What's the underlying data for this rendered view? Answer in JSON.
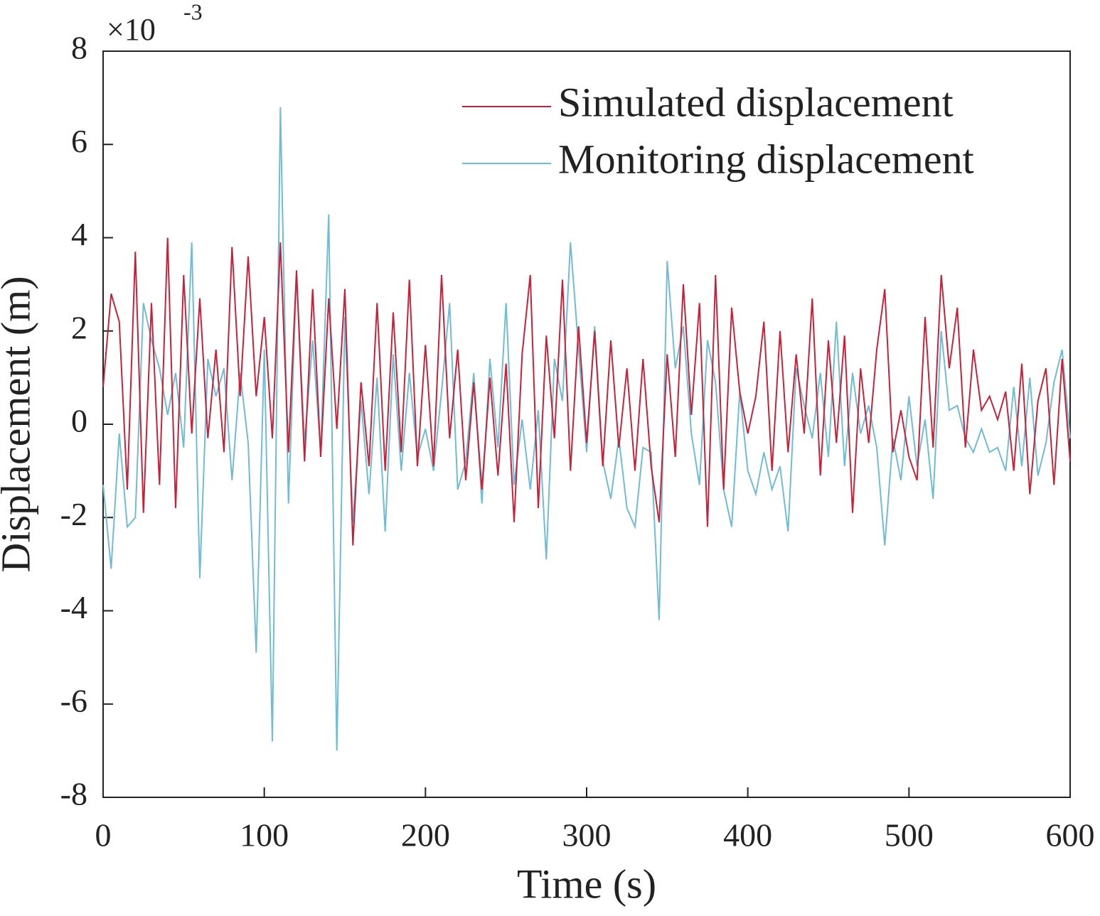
{
  "chart_data": {
    "type": "line",
    "xlabel": "Time (s)",
    "ylabel": "Displacement (m)",
    "y_multiplier": {
      "base": "×10",
      "exponent": "-3"
    },
    "x": [
      0,
      5,
      10,
      15,
      20,
      25,
      30,
      35,
      40,
      45,
      50,
      55,
      60,
      65,
      70,
      75,
      80,
      85,
      90,
      95,
      100,
      105,
      110,
      115,
      120,
      125,
      130,
      135,
      140,
      145,
      150,
      155,
      160,
      165,
      170,
      175,
      180,
      185,
      190,
      195,
      200,
      205,
      210,
      215,
      220,
      225,
      230,
      235,
      240,
      245,
      250,
      255,
      260,
      265,
      270,
      275,
      280,
      285,
      290,
      295,
      300,
      305,
      310,
      315,
      320,
      325,
      330,
      335,
      340,
      345,
      350,
      355,
      360,
      365,
      370,
      375,
      380,
      385,
      390,
      395,
      400,
      405,
      410,
      415,
      420,
      425,
      430,
      435,
      440,
      445,
      450,
      455,
      460,
      465,
      470,
      475,
      480,
      485,
      490,
      495,
      500,
      505,
      510,
      515,
      520,
      525,
      530,
      535,
      540,
      545,
      550,
      555,
      560,
      565,
      570,
      575,
      580,
      585,
      590,
      595,
      600
    ],
    "series": [
      {
        "name": "Simulated displacement",
        "color": "#c8223a",
        "values": [
          0.8,
          2.8,
          2.2,
          -1.4,
          3.7,
          -1.9,
          2.6,
          -1.3,
          4.0,
          -1.8,
          3.2,
          -0.2,
          2.7,
          -0.3,
          1.6,
          -0.6,
          3.8,
          0.6,
          3.6,
          0.6,
          2.3,
          -0.3,
          3.9,
          -0.6,
          3.3,
          -0.8,
          2.9,
          -0.7,
          2.7,
          -0.1,
          2.9,
          -2.6,
          0.9,
          -0.9,
          2.6,
          -1.0,
          2.4,
          -0.6,
          3.1,
          -0.9,
          1.7,
          -0.9,
          3.2,
          -0.3,
          1.6,
          -1.2,
          0.9,
          -1.4,
          1.0,
          -1.1,
          1.3,
          -2.1,
          1.5,
          3.2,
          -1.8,
          1.9,
          -0.3,
          3.1,
          -1.0,
          2.1,
          -0.4,
          2.0,
          -0.9,
          1.8,
          -0.5,
          1.2,
          -1.0,
          1.4,
          -0.9,
          -2.1,
          1.5,
          -0.7,
          3.0,
          0.2,
          2.6,
          -2.2,
          3.2,
          -1.4,
          2.5,
          0.7,
          -0.2,
          0.6,
          2.2,
          -1.0,
          2.0,
          -0.6,
          1.5,
          -0.2,
          2.7,
          -1.1,
          1.8,
          -0.4,
          1.9,
          -1.9,
          1.2,
          -0.4,
          1.6,
          2.9,
          -0.6,
          0.3,
          -0.7,
          -1.2,
          2.3,
          -0.5,
          3.2,
          1.2,
          2.5,
          -0.5,
          1.6,
          0.3,
          0.6,
          0.1,
          0.7,
          -1.0,
          1.3,
          -1.5,
          0.5,
          1.2,
          -1.3,
          1.4,
          -0.8
        ]
      },
      {
        "name": "Monitoring displacement",
        "color": "#70bcd6",
        "values": [
          -1.3,
          -3.1,
          -0.2,
          -2.2,
          -2.0,
          2.6,
          1.8,
          1.2,
          0.2,
          1.1,
          -0.5,
          3.9,
          -3.3,
          1.4,
          0.6,
          1.2,
          -1.2,
          1.1,
          -0.4,
          -4.9,
          1.6,
          -6.8,
          6.8,
          -1.7,
          3.2,
          -0.4,
          1.8,
          -0.6,
          4.5,
          -7.0,
          2.3,
          -2.1,
          0.5,
          -1.5,
          1.0,
          -2.3,
          1.5,
          -1.0,
          1.1,
          -0.7,
          -0.1,
          -1.0,
          0.7,
          2.6,
          -1.4,
          -0.8,
          1.1,
          -1.7,
          1.4,
          -0.5,
          2.6,
          -1.3,
          0.1,
          -1.4,
          0.3,
          -2.9,
          1.4,
          0.5,
          3.9,
          1.6,
          -0.6,
          2.1,
          -0.8,
          -1.6,
          -0.3,
          -1.8,
          -2.2,
          -0.5,
          -0.6,
          -4.2,
          3.5,
          1.2,
          2.1,
          -0.2,
          -1.3,
          1.8,
          0.9,
          -1.4,
          -2.2,
          0.7,
          -1.0,
          -1.5,
          -0.6,
          -1.4,
          -0.9,
          -2.3,
          1.2,
          0.4,
          -0.3,
          1.1,
          -0.7,
          2.2,
          -0.9,
          1.1,
          -0.2,
          0.4,
          -0.5,
          -2.6,
          -0.3,
          -1.2,
          0.6,
          -0.9,
          0.1,
          -1.6,
          2.0,
          0.3,
          0.4,
          -0.3,
          -0.6,
          -0.1,
          -0.6,
          -0.5,
          -1.0,
          0.8,
          -0.9,
          1.0,
          -1.1,
          -0.4,
          0.9,
          1.6,
          -0.3
        ]
      }
    ],
    "xlim": [
      0,
      600
    ],
    "xticks": [
      0,
      100,
      200,
      300,
      400,
      500,
      600
    ],
    "ylim": [
      -8,
      8
    ],
    "yticks": [
      -8,
      -6,
      -4,
      -2,
      0,
      2,
      4,
      6,
      8
    ],
    "legend": "upper right"
  }
}
